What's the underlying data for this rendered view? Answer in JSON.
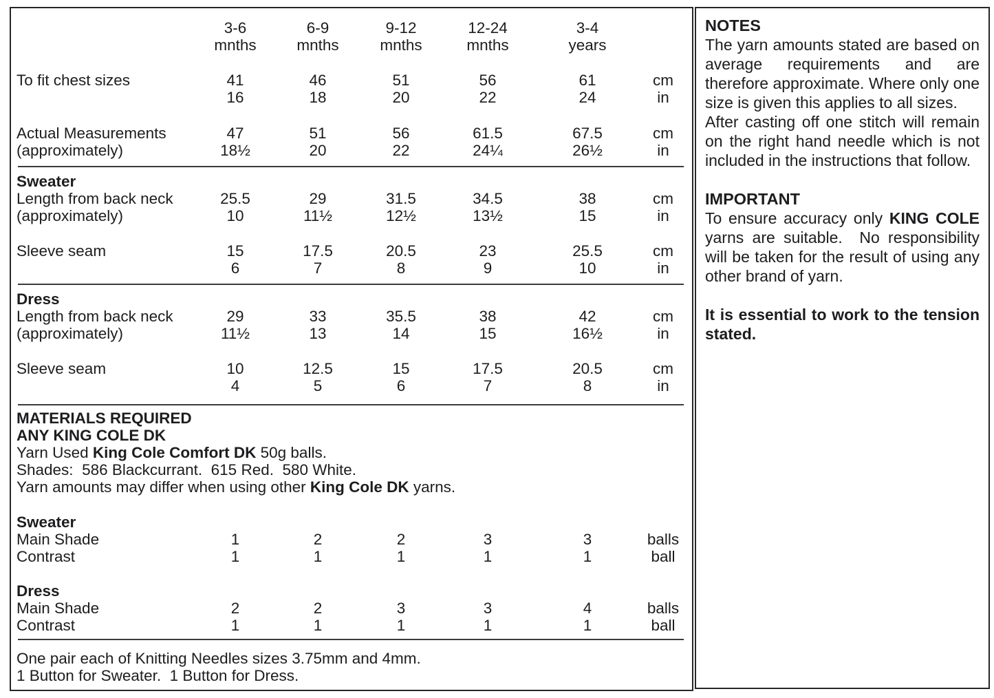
{
  "size_table": {
    "columns": [
      {
        "line1": "3-6",
        "line2": "mnths"
      },
      {
        "line1": "6-9",
        "line2": "mnths"
      },
      {
        "line1": "9-12",
        "line2": "mnths"
      },
      {
        "line1": "12-24",
        "line2": "mnths"
      },
      {
        "line1": "3-4",
        "line2": "years"
      }
    ],
    "rows": [
      {
        "label1": "To fit chest sizes",
        "label2": "",
        "cm": [
          "41",
          "46",
          "51",
          "56",
          "61"
        ],
        "in": [
          "16",
          "18",
          "20",
          "22",
          "24"
        ],
        "unit1": "cm",
        "unit2": "in"
      },
      {
        "label1": "Actual Measurements",
        "label2": "(approximately)",
        "cm": [
          "47",
          "51",
          "56",
          "61.5",
          "67.5"
        ],
        "in": [
          "18½",
          "20",
          "22",
          "24¼",
          "26½"
        ],
        "unit1": "cm",
        "unit2": "in"
      }
    ],
    "sweater": {
      "heading": "Sweater",
      "rows": [
        {
          "label1": "Length from back neck",
          "label2": "(approximately)",
          "cm": [
            "25.5",
            "29",
            "31.5",
            "34.5",
            "38"
          ],
          "in": [
            "10",
            "11½",
            "12½",
            "13½",
            "15"
          ],
          "unit1": "cm",
          "unit2": "in"
        },
        {
          "label1": "Sleeve seam",
          "label2": "",
          "cm": [
            "15",
            "17.5",
            "20.5",
            "23",
            "25.5"
          ],
          "in": [
            "6",
            "7",
            "8",
            "9",
            "10"
          ],
          "unit1": "cm",
          "unit2": "in"
        }
      ]
    },
    "dress": {
      "heading": "Dress",
      "rows": [
        {
          "label1": "Length from back neck",
          "label2": "(approximately)",
          "cm": [
            "29",
            "33",
            "35.5",
            "38",
            "42"
          ],
          "in": [
            "11½",
            "13",
            "14",
            "15",
            "16½"
          ],
          "unit1": "cm",
          "unit2": "in"
        },
        {
          "label1": "Sleeve seam",
          "label2": "",
          "cm": [
            "10",
            "12.5",
            "15",
            "17.5",
            "20.5"
          ],
          "in": [
            "4",
            "5",
            "6",
            "7",
            "8"
          ],
          "unit1": "cm",
          "unit2": "in"
        }
      ]
    }
  },
  "materials": {
    "heading1": "MATERIALS REQUIRED",
    "heading2": "ANY KING COLE DK",
    "yarn_used": {
      "pre": "Yarn Used ",
      "bold": "King Cole Comfort DK",
      "post": " 50g balls."
    },
    "shades": "Shades:  586 Blackcurrant.  615 Red.  580 White.",
    "yarn_note": {
      "pre": "Yarn amounts may differ when using other ",
      "bold": "King Cole DK",
      "post": " yarns."
    },
    "sweater": {
      "heading": "Sweater",
      "rows": [
        {
          "label": "Main Shade",
          "values": [
            "1",
            "2",
            "2",
            "3",
            "3"
          ],
          "unit": "balls"
        },
        {
          "label": "Contrast",
          "values": [
            "1",
            "1",
            "1",
            "1",
            "1"
          ],
          "unit": "ball"
        }
      ]
    },
    "dress": {
      "heading": "Dress",
      "rows": [
        {
          "label": "Main Shade",
          "values": [
            "2",
            "2",
            "3",
            "3",
            "4"
          ],
          "unit": "balls"
        },
        {
          "label": "Contrast",
          "values": [
            "1",
            "1",
            "1",
            "1",
            "1"
          ],
          "unit": "ball"
        }
      ]
    },
    "needles": "One pair each of Knitting Needles sizes 3.75mm and 4mm.",
    "buttons": "1 Button for Sweater.  1 Button for Dress."
  },
  "notes_panel": {
    "notes_heading": "NOTES",
    "notes_p1": "The yarn amounts stated are based on average requirements and are therefore approximate. Where only one size is given this applies to all sizes.",
    "notes_p2": "After casting off one stitch will remain on the right hand needle which is not included in the instructions that follow.",
    "important_heading": "IMPORTANT",
    "important_p": {
      "pre": "To ensure accuracy only ",
      "bold": "KING COLE",
      "post": " yarns are suitable.  No responsibility will be taken for the result of using any other brand of yarn."
    },
    "tension": "It is essential to work to the tension stated."
  }
}
